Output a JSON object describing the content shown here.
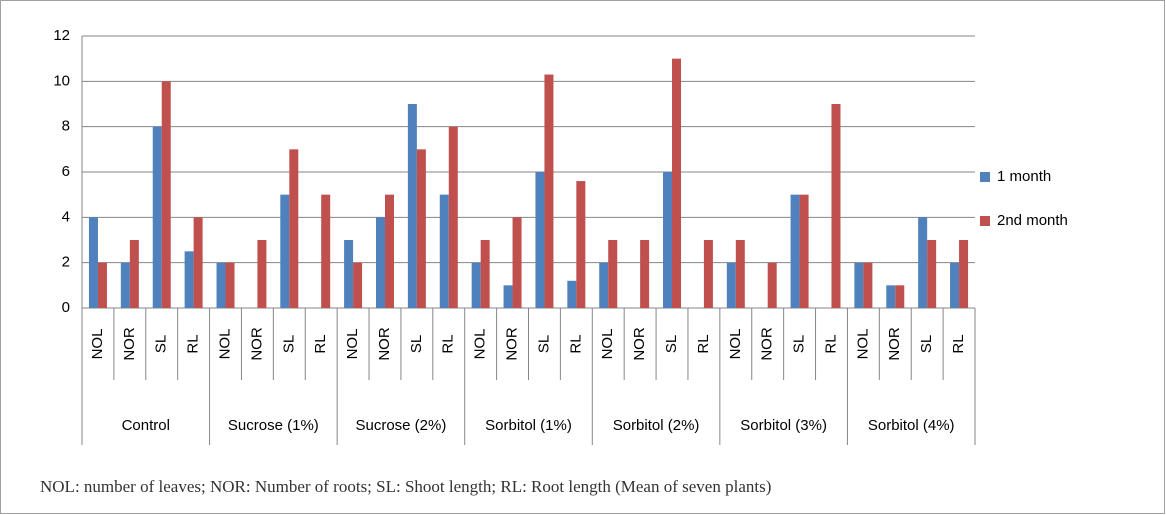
{
  "chart_data": {
    "type": "bar",
    "categories": [
      "NOL",
      "NOR",
      "SL",
      "RL",
      "NOL",
      "NOR",
      "SL",
      "RL",
      "NOL",
      "NOR",
      "SL",
      "RL",
      "NOL",
      "NOR",
      "SL",
      "RL",
      "NOL",
      "NOR",
      "SL",
      "RL",
      "NOL",
      "NOR",
      "SL",
      "RL",
      "NOL",
      "NOR",
      "SL",
      "RL"
    ],
    "groups": [
      "Control",
      "Sucrose (1%)",
      "Sucrose (2%)",
      "Sorbitol (1%)",
      "Sorbitol (2%)",
      "Sorbitol (3%)",
      "Sorbitol (4%)"
    ],
    "series": [
      {
        "name": "1 month",
        "color": "#4f81bd",
        "values": [
          4,
          2,
          8,
          2.5,
          2,
          0,
          5,
          0,
          3,
          4,
          9,
          5,
          2,
          1,
          6,
          1.2,
          2,
          0,
          6,
          0,
          2,
          0,
          5,
          0,
          2,
          1,
          4,
          2
        ]
      },
      {
        "name": "2nd month",
        "color": "#c0504d",
        "values": [
          2,
          3,
          10,
          4,
          2,
          3,
          7,
          5,
          2,
          5,
          7,
          8,
          3,
          4,
          10.3,
          5.6,
          3,
          3,
          11,
          3,
          3,
          2,
          5,
          9,
          2,
          1,
          3,
          3
        ]
      }
    ],
    "ylim": [
      0,
      12
    ],
    "yticks": [
      0,
      2,
      4,
      6,
      8,
      10,
      12
    ],
    "grid": true,
    "legend": "right",
    "note": "NOL: number of leaves; NOR: Number of roots; SL: Shoot length; RL: Root length (Mean of seven plants)"
  }
}
